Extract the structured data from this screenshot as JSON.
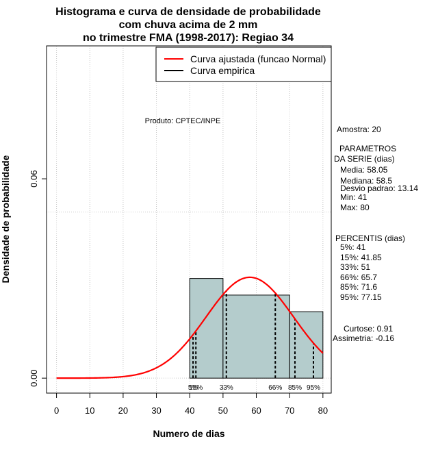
{
  "chart_data": {
    "type": "bar",
    "title_lines": [
      "Histograma e curva de densidade de probabilidade",
      "com chuva acima de 2 mm",
      "no trimestre FMA (1998-2017): Regiao 34"
    ],
    "xlabel": "Numero de dias",
    "ylabel": "Densidade de probabilidade",
    "xlim": [
      -3,
      82.5
    ],
    "ylim": [
      -0.0045,
      0.1
    ],
    "x_ticks": [
      0,
      10,
      20,
      30,
      40,
      50,
      60,
      70,
      80
    ],
    "y_ticks": [
      {
        "value": 0,
        "label": "0.00"
      },
      {
        "value": 0.06,
        "label": "0.06"
      }
    ],
    "grid": true,
    "vertical_grid_x": [
      0,
      10,
      20,
      30,
      40,
      50,
      60,
      70,
      80
    ],
    "extra_hline_y": 0.05,
    "histogram": {
      "fill": "#b4cccc",
      "bins": [
        {
          "from": 40,
          "to": 50,
          "density": 0.03
        },
        {
          "from": 50,
          "to": 70,
          "density": 0.025
        },
        {
          "from": 70,
          "to": 80,
          "density": 0.02
        }
      ]
    },
    "fitted_curve": {
      "name": "Curva ajustada (funcao Normal)",
      "color": "#ff0000",
      "mean": 58.05,
      "sd": 13.14,
      "from": 0,
      "to": 80
    },
    "empirical_curve": {
      "name": "Curva empirica",
      "color": "#000000"
    },
    "percentile_lines": [
      {
        "x": 41,
        "label": "5%"
      },
      {
        "x": 41.85,
        "label": "15%"
      },
      {
        "x": 51,
        "label": "33%"
      },
      {
        "x": 65.7,
        "label": "66%"
      },
      {
        "x": 71.6,
        "label": "85%"
      },
      {
        "x": 77.15,
        "label": "95%"
      }
    ],
    "legend_position": "top-right",
    "product_note": "Produto: CPTEC/INPE"
  },
  "side_panel": {
    "amostra": "Amostra: 20",
    "params_header_1": "PARAMETROS",
    "params_header_2": "DA SERIE (dias)",
    "params": [
      "Media: 58.05",
      "Mediana: 58.5",
      "Desvio padrao: 13.14",
      "Min: 41",
      "Max: 80"
    ],
    "percentis_header": "PERCENTIS (dias)",
    "percentis": [
      "5%: 41",
      "15%: 41.85",
      "33%: 51",
      "66%: 65.7",
      "85%: 71.6",
      "95%: 77.15"
    ],
    "curtose": "Curtose: 0.91",
    "assimetria": "Assimetria: -0.16"
  }
}
